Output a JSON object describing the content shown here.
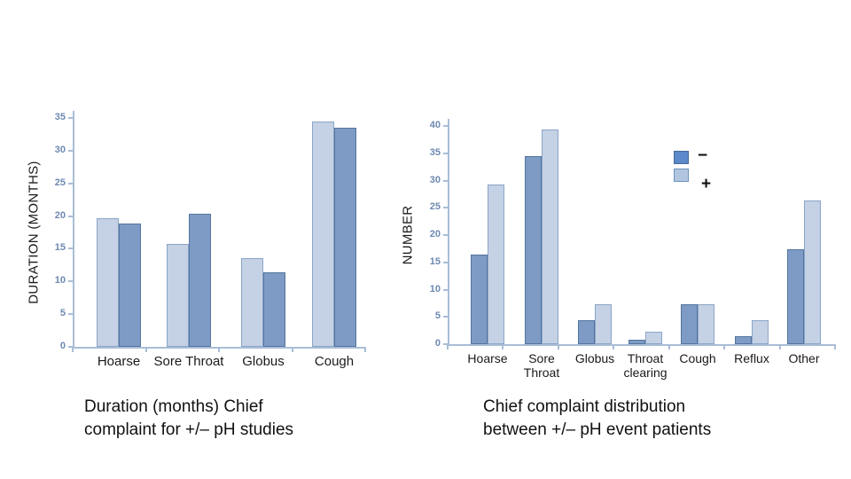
{
  "page": {
    "background": "#ffffff"
  },
  "colors": {
    "bar_light_fill": "#c5d1e4",
    "bar_light_border": "#8aa5c8",
    "bar_dark_fill": "#7d9bc4",
    "bar_dark_border": "#54749f",
    "legend_dark_fill": "#5b89c9",
    "legend_dark_border": "#44699a",
    "legend_light_fill": "#b2c6e0",
    "legend_light_border": "#6d93bd",
    "axis_line": "#a9bdd6",
    "tick_label": "#6e89b1",
    "text": "#1a1a1a"
  },
  "chart_data": [
    {
      "type": "bar",
      "title": "Duration (months) Chief\ncomplaint for +/– pH studies",
      "ylabel": "DURATION (MONTHS)",
      "xlabel": "",
      "ylim": [
        0,
        35
      ],
      "ytick_step": 5,
      "grid": false,
      "legend": null,
      "categories": [
        "Hoarse",
        "Sore Throat",
        "Globus",
        "Cough"
      ],
      "series": [
        {
          "name": "+",
          "style": "light",
          "values": [
            19.7,
            15.8,
            13.5,
            34.5
          ]
        },
        {
          "name": "−",
          "style": "dark",
          "values": [
            18.9,
            20.4,
            11.4,
            33.5
          ]
        }
      ]
    },
    {
      "type": "bar",
      "title": "Chief complaint distribution\nbetween +/– pH event patients",
      "ylabel": "NUMBER",
      "xlabel": "",
      "ylim": [
        0,
        40
      ],
      "ytick_step": 5,
      "grid": false,
      "legend": {
        "position": "upper-right",
        "entries": [
          {
            "label": "−",
            "style": "dark"
          },
          {
            "label": "+",
            "style": "light"
          }
        ]
      },
      "categories": [
        "Hoarse",
        "Sore Throat",
        "Globus",
        "Throat clearing",
        "Cough",
        "Reflux",
        "Other"
      ],
      "series": [
        {
          "name": "−",
          "style": "dark",
          "values": [
            16.4,
            34.4,
            4.4,
            0.8,
            7.3,
            1.4,
            17.4
          ]
        },
        {
          "name": "+",
          "style": "light",
          "values": [
            29.3,
            39.4,
            7.3,
            2.3,
            7.3,
            4.4,
            26.3
          ]
        }
      ]
    }
  ]
}
